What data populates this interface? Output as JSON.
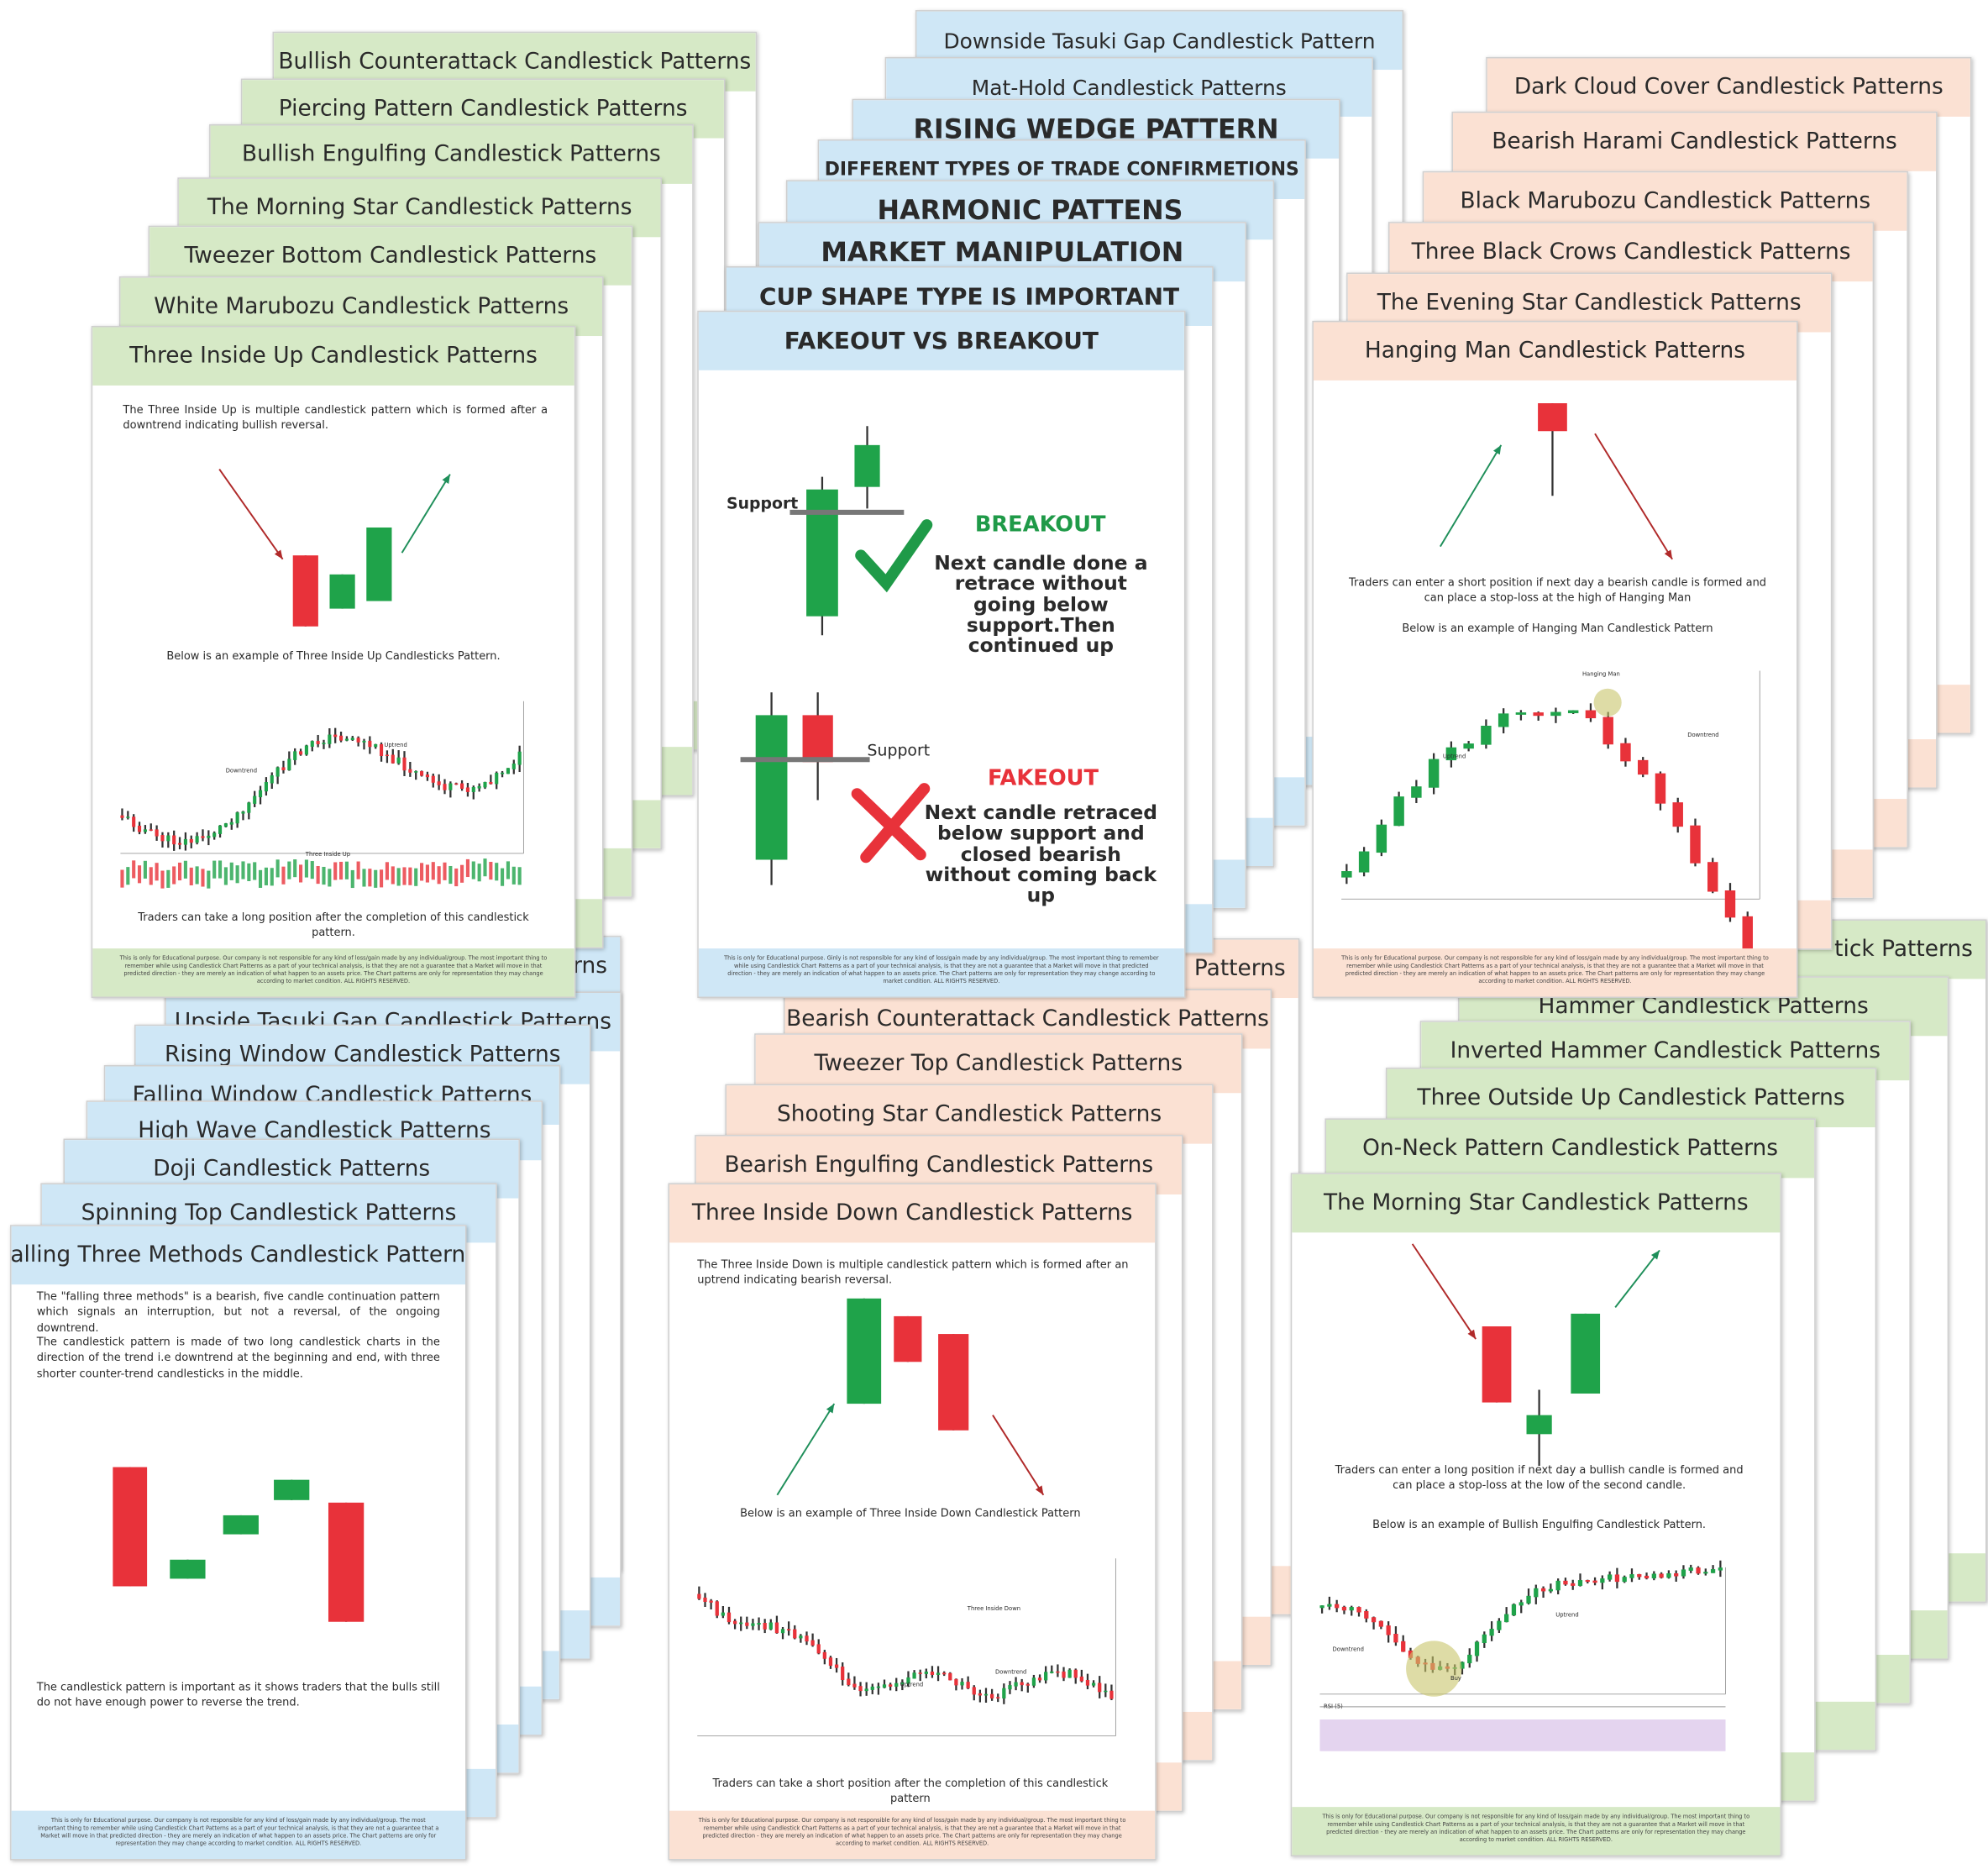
{
  "stacks": [
    {
      "cards": [
        {
          "title": "Bullish Counterattack Candlestick Patterns"
        },
        {
          "title": "Piercing Pattern Candlestick Patterns"
        },
        {
          "title": "Bullish Engulfing Candlestick Patterns"
        },
        {
          "title": "The Morning Star Candlestick Patterns"
        },
        {
          "title": "Tweezer Bottom Candlestick Patterns"
        },
        {
          "title": "White Marubozu Candlestick Patterns"
        },
        {
          "title": "Three Inside Up Candlestick Patterns"
        }
      ],
      "front": {
        "texts": [
          "The Three Inside Up is multiple candlestick pattern which is formed after a downtrend indicating bullish reversal.",
          "Below is an example of Three Inside Up Candlesticks Pattern.",
          "Downtrend",
          "Uptrend",
          "Three Inside Up",
          "Traders can take a long position after the completion of this candlestick pattern."
        ],
        "footer": "This is only for Educational purpose. Our company is not responsible for any kind of loss/gain made by any individual/group. The most important thing to remember while using Candlestick Chart Patterns as a part of your technical analysis, is that they are not a guarantee that a Market will move in that predicted direction - they are merely an indication of what happen to an assets price. The Chart patterns are only for representation they may change according to market condition. ALL RIGHTS RESERVED."
      }
    },
    {
      "cards": [
        {
          "title": "Downside Tasuki Gap Candlestick Pattern"
        },
        {
          "title": "Mat-Hold Candlestick Patterns"
        },
        {
          "title": "RISING WEDGE PATTERN"
        },
        {
          "title": "DIFFERENT TYPES OF TRADE CONFIRMETIONS"
        },
        {
          "title": "HARMONIC PATTENS"
        },
        {
          "title": "MARKET MANIPULATION"
        },
        {
          "title": "CUP SHAPE TYPE IS IMPORTANT"
        },
        {
          "title": "FAKEOUT VS BREAKOUT"
        }
      ],
      "front": {
        "texts": [
          "Support",
          "BREAKOUT",
          "Next candle done a retrace without going below support.Then continued up",
          "Support",
          "FAKEOUT",
          "Next candle retraced below support and closed bearish without coming back up"
        ],
        "footer": "This is only for Educational purpose. Ginly is not responsible for any kind of loss/gain made by any individual/group. The most important thing to remember while using Candlestick Chart Patterns as a part of your technical analysis, is that they are not a guarantee that a Market will move in that predicted direction - they are merely an indication of what happen to an assets price. The Chart patterns are only for representation they may change according to market condition. ALL RIGHTS RESERVED."
      }
    },
    {
      "cards": [
        {
          "title": "Dark Cloud Cover Candlestick Patterns"
        },
        {
          "title": "Bearish Harami Candlestick Patterns"
        },
        {
          "title": "Black Marubozu Candlestick Patterns"
        },
        {
          "title": "Three Black Crows Candlestick Patterns"
        },
        {
          "title": "The Evening Star Candlestick Patterns"
        },
        {
          "title": "Hanging Man Candlestick Patterns"
        }
      ],
      "front": {
        "texts": [
          "Traders can enter a short position if next day a bearish candle is formed and can place a stop-loss at the high of Hanging Man",
          "Below is an example of Hanging Man Candlestick Pattern",
          "Hanging Man",
          "Uptrend",
          "Downtrend"
        ],
        "footer": "This is only for Educational purpose. Our company is not responsible for any kind of loss/gain made by any individual/group. The most important thing to remember while using Candlestick Chart Patterns as a part of your technical analysis, is that they are not a guarantee that a Market will move in that predicted direction - they are merely an indication of what happen to an assets price. The Chart patterns are only for representation they may change according to market condition. ALL RIGHTS RESERVED."
      }
    },
    {
      "cards": [
        {
          "title": "terns"
        },
        {
          "title": "Upside Tasuki Gap Candlestick Patterns"
        },
        {
          "title": "Rising Window Candlestick Patterns"
        },
        {
          "title": "Falling Window Candlestick Patterns"
        },
        {
          "title": "High Wave Candlestick Patterns"
        },
        {
          "title": "Doji Candlestick Patterns"
        },
        {
          "title": "Spinning Top Candlestick Patterns"
        },
        {
          "title": "Falling Three Methods Candlestick Patterns"
        }
      ],
      "front": {
        "texts": [
          "The \"falling three methods\" is a bearish, five candle continuation pattern which signals an interruption, but not a reversal, of the ongoing downtrend.",
          "The candlestick pattern is made of two long candlestick charts in the direction of the trend i.e downtrend at the beginning and end, with three shorter counter-trend candlesticks in the middle.",
          "The candlestick pattern is important as it shows traders that the bulls still do not have enough power to reverse the trend."
        ],
        "footer": "This is only for Educational purpose. Our company is not responsible for any kind of loss/gain made by any individual/group. The most important thing to remember while using Candlestick Chart Patterns as a part of your technical analysis, is that they are not a guarantee that a Market will move in that predicted direction - they are merely an indication of what happen to an assets price. The Chart patterns are only for representation they may change according to market condition. ALL RIGHTS RESERVED."
      }
    },
    {
      "cards": [
        {
          "title": "Patterns"
        },
        {
          "title": "Bearish Counterattack Candlestick Patterns"
        },
        {
          "title": "Tweezer Top Candlestick Patterns"
        },
        {
          "title": "Shooting Star Candlestick Patterns"
        },
        {
          "title": "Bearish Engulfing Candlestick Patterns"
        },
        {
          "title": "Three Inside Down Candlestick Patterns"
        }
      ],
      "front": {
        "texts": [
          "The Three Inside Down is multiple candlestick pattern which is formed after an uptrend indicating bearish reversal.",
          "Below is an example of Three Inside Down Candlestick Pattern",
          "Three Inside Down",
          "Uptrend",
          "Downtrend",
          "Traders can take a short position after the completion of this candlestick pattern"
        ],
        "footer": "This is only for Educational purpose. Our company is not responsible for any kind of loss/gain made by any individual/group. The most important thing to remember while using Candlestick Chart Patterns as a part of your technical analysis, is that they are not a guarantee that a Market will move in that predicted direction - they are merely an indication of what happen to an assets price. The Chart patterns are only for representation they may change according to market condition. ALL RIGHTS RESERVED."
      }
    },
    {
      "cards": [
        {
          "title": "tick Patterns"
        },
        {
          "title": "Hammer Candlestick Patterns"
        },
        {
          "title": "Inverted Hammer Candlestick Patterns"
        },
        {
          "title": "Three Outside Up Candlestick Patterns"
        },
        {
          "title": "On-Neck Pattern Candlestick Patterns"
        },
        {
          "title": "The Morning Star Candlestick Patterns"
        }
      ],
      "front": {
        "texts": [
          "Traders can enter a long position if next day a bullish candle is formed and can place a stop-loss at the low of the second candle.",
          "Below is an example of Bullish Engulfing Candlestick Pattern.",
          "Downtrend",
          "Buy",
          "Uptrend",
          "RSI (5)"
        ],
        "footer": "This is only for Educational purpose. Our company is not responsible for any kind of loss/gain made by any individual/group. The most important thing to remember while using Candlestick Chart Patterns as a part of your technical analysis, is that they are not a guarantee that a Market will move in that predicted direction - they are merely an indication of what happen to an assets price. The Chart patterns are only for representation they may change according to market condition. ALL RIGHTS RESERVED."
      }
    }
  ]
}
